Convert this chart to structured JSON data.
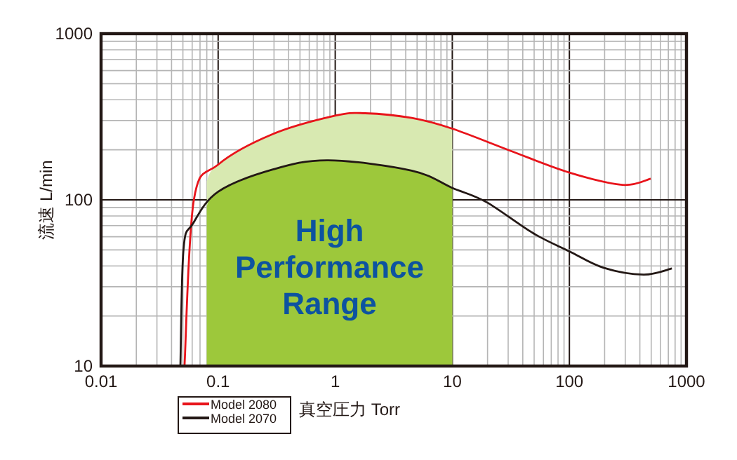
{
  "chart_data": {
    "type": "line",
    "xlabel": "真空圧力 Torr",
    "ylabel": "流速 L/min",
    "log": "xy",
    "grid": true,
    "legend": "bottom left",
    "line_style": "solid",
    "marker": "none",
    "xlim": [
      0.01,
      1000
    ],
    "ylim": [
      10,
      1000
    ],
    "xticks": [
      0.01,
      0.1,
      1,
      10,
      100,
      1000
    ],
    "yticks": [
      10,
      100,
      1000
    ],
    "series": [
      {
        "name": "Model 2080",
        "color": "#e8141b",
        "x": [
          0.0516,
          0.062,
          0.1,
          0.29,
          1,
          1.8,
          4.5,
          10,
          31,
          100,
          284,
          495
        ],
        "values": [
          10,
          100,
          163,
          248,
          321,
          332,
          311,
          268,
          198,
          146,
          123,
          134
        ]
      },
      {
        "name": "Model 2070",
        "color": "#231815",
        "x": [
          0.0476,
          0.0506,
          0.061,
          0.1,
          0.29,
          0.87,
          4.5,
          10,
          19.5,
          49,
          100,
          196,
          431,
          751
        ],
        "values": [
          10,
          50.6,
          72,
          112,
          152,
          173,
          150,
          118,
          97,
          63,
          49,
          39,
          35.5,
          38.6
        ]
      }
    ],
    "bands": [
      {
        "axis": "x",
        "from": 0.08,
        "to": 10,
        "label": "High Performance Range",
        "color": "#9dc83b"
      },
      {
        "axis": "x",
        "from": 0.08,
        "to": 10,
        "color": "#d8e9b1"
      }
    ]
  }
}
